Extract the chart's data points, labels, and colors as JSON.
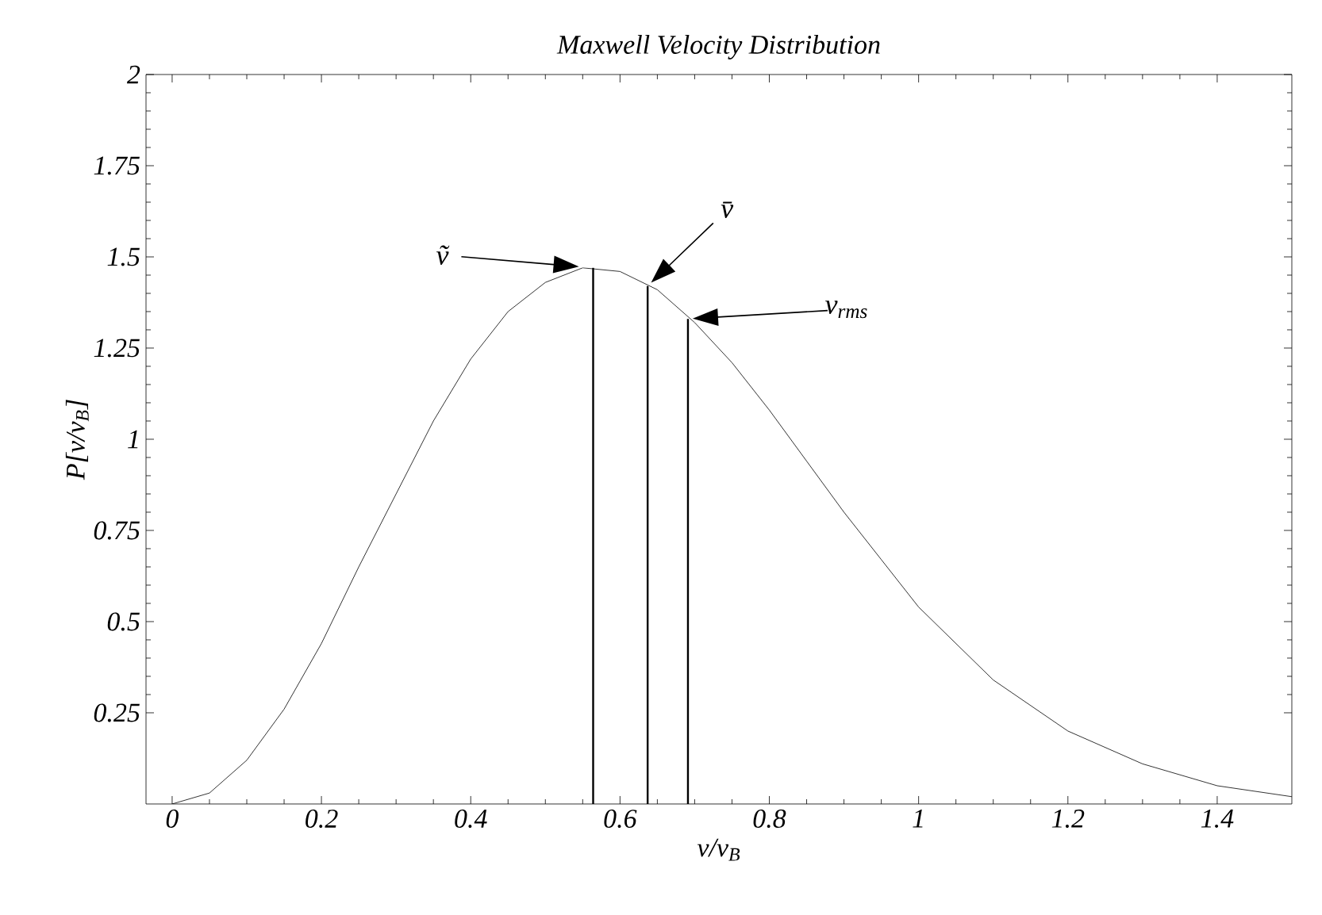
{
  "chart_data": {
    "type": "line",
    "title": "Maxwell Velocity Distribution",
    "xlabel": "v/v$_{B}$",
    "ylabel": "P[v/v$_{B}$]",
    "x": [
      0,
      0.05,
      0.1,
      0.15,
      0.2,
      0.25,
      0.3,
      0.35,
      0.4,
      0.45,
      0.5,
      0.55,
      0.6,
      0.65,
      0.7,
      0.75,
      0.8,
      0.85,
      0.9,
      0.95,
      1.0,
      1.1,
      1.2,
      1.3,
      1.4,
      1.5
    ],
    "series": [
      {
        "color": "#000000",
        "values": [
          0,
          0.03,
          0.12,
          0.26,
          0.44,
          0.65,
          0.85,
          1.05,
          1.22,
          1.35,
          1.43,
          1.47,
          1.46,
          1.41,
          1.32,
          1.21,
          1.08,
          0.94,
          0.8,
          0.67,
          0.54,
          0.34,
          0.2,
          0.11,
          0.05,
          0.02
        ]
      },
      {
        "type": "bar",
        "color": "#000000",
        "x": [
          0.564,
          0.637,
          0.691
        ],
        "values": [
          1.47,
          1.42,
          1.33
        ]
      }
    ],
    "xlim": [
      -0.035,
      1.5
    ],
    "ylim": [
      0,
      2
    ],
    "xticks": [
      0,
      0.2,
      0.4,
      0.6,
      0.8,
      1,
      1.2,
      1.4
    ],
    "yticks": [
      0.25,
      0.5,
      0.75,
      1,
      1.25,
      1.5,
      1.75,
      2
    ],
    "marker": "none",
    "line_style": "solid",
    "grid": false,
    "annotations": [
      "ṽ",
      "v̄",
      "v$_{rms}$"
    ]
  }
}
